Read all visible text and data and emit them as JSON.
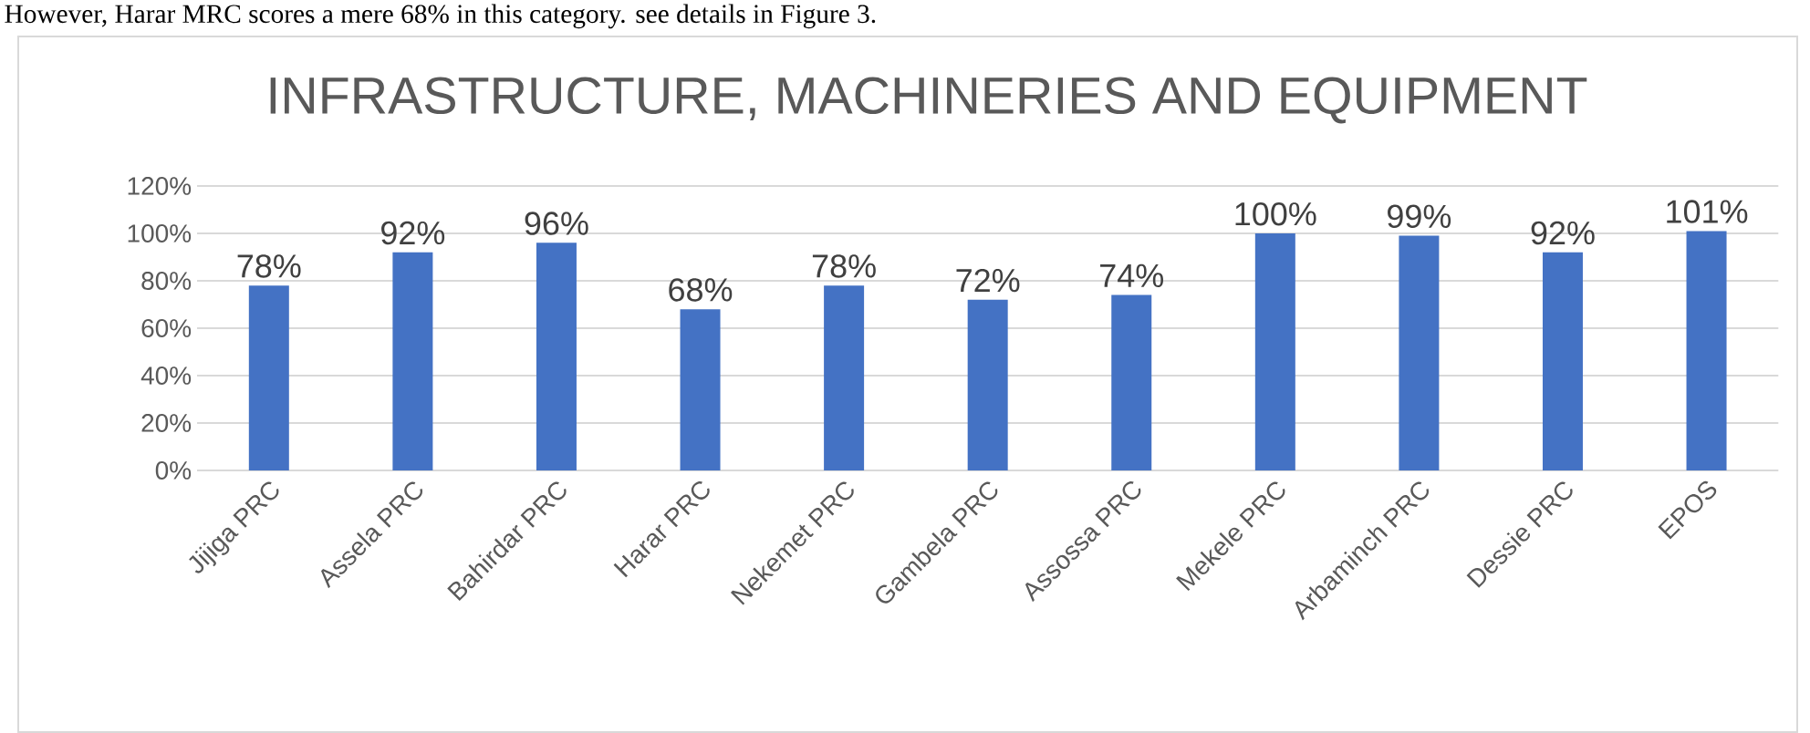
{
  "chart_data": {
    "type": "bar",
    "title": "INFRASTRUCTURE, MACHINERIES AND EQUIPMENT",
    "annotations": [
      "However, Harar MRC scores a mere 68% in this category. see details in Figure 3."
    ],
    "categories": [
      "Jijiga PRC",
      "Assela PRC",
      "Bahirdar PRC",
      "Harar PRC",
      "Nekemet PRC",
      "Gambela PRC",
      "Assossa PRC",
      "Mekele PRC",
      "Arbaminch PRC",
      "Dessie PRC",
      "EPOS"
    ],
    "values": [
      78,
      92,
      96,
      68,
      78,
      72,
      74,
      100,
      99,
      92,
      101
    ],
    "value_labels": [
      "78%",
      "92%",
      "96%",
      "68%",
      "78%",
      "72%",
      "74%",
      "100%",
      "99%",
      "92%",
      "101%"
    ],
    "color": "#4472c4",
    "ylim": [
      0,
      120
    ],
    "yticks": [
      {
        "value": 0,
        "label": "0%"
      },
      {
        "value": 20,
        "label": "20%"
      },
      {
        "value": 40,
        "label": "40%"
      },
      {
        "value": 60,
        "label": "60%"
      },
      {
        "value": 80,
        "label": "80%"
      },
      {
        "value": 100,
        "label": "100%"
      },
      {
        "value": 120,
        "label": "120%"
      }
    ],
    "grid": true
  }
}
